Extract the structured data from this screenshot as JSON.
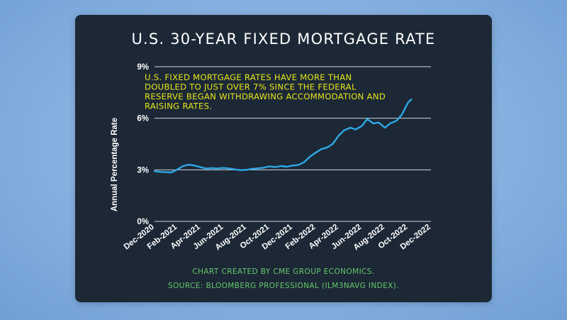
{
  "chart_data": {
    "type": "line",
    "title": "U.S. 30-YEAR FIXED MORTGAGE RATE",
    "ylabel": "Annual Percentage Rate",
    "xlabel": "",
    "ylim": [
      0,
      9
    ],
    "yticks": [
      "0%",
      "3%",
      "6%",
      "9%"
    ],
    "xtick_labels": [
      "Dec-2020",
      "Feb-2021",
      "Apr-2021",
      "Jun-2021",
      "Aug-2021",
      "Oct-2021",
      "Dec-2021",
      "Feb-2022",
      "Apr-2022",
      "Jun-2022",
      "Aug-2022",
      "Oct-2022",
      "Dec-2022"
    ],
    "xrange_months": [
      0,
      24
    ],
    "annotation": "U.S. FIXED MORTGAGE RATES HAVE MORE THAN DOUBLED TO JUST OVER 7% SINCE THE FEDERAL RESERVE BEGAN WITHDRAWING ACCOMMODATION AND RAISING RATES.",
    "grid": true,
    "line_color": "#2ea8e6",
    "series": [
      {
        "x": [
          "2020-12-01",
          "2020-12-15",
          "2021-01-01",
          "2021-01-15",
          "2021-02-01",
          "2021-02-15",
          "2021-03-01",
          "2021-03-15",
          "2021-04-01",
          "2021-04-15",
          "2021-05-01",
          "2021-05-15",
          "2021-06-01",
          "2021-06-15",
          "2021-07-01",
          "2021-07-15",
          "2021-08-01",
          "2021-08-15",
          "2021-09-01",
          "2021-09-15",
          "2021-10-01",
          "2021-10-15",
          "2021-11-01",
          "2021-11-15",
          "2021-12-01",
          "2021-12-15",
          "2022-01-01",
          "2022-01-15",
          "2022-02-01",
          "2022-02-15",
          "2022-03-01",
          "2022-03-15",
          "2022-04-01",
          "2022-04-15",
          "2022-05-01",
          "2022-05-15",
          "2022-06-01",
          "2022-06-15",
          "2022-07-01",
          "2022-07-15",
          "2022-08-01",
          "2022-08-15",
          "2022-09-01",
          "2022-09-15",
          "2022-10-01",
          "2022-10-10"
        ],
        "values": [
          2.92,
          2.88,
          2.86,
          2.85,
          3.02,
          3.22,
          3.3,
          3.25,
          3.15,
          3.07,
          3.1,
          3.08,
          3.11,
          3.08,
          3.02,
          2.98,
          3.0,
          3.05,
          3.09,
          3.12,
          3.2,
          3.16,
          3.22,
          3.18,
          3.25,
          3.28,
          3.45,
          3.75,
          4.0,
          4.2,
          4.3,
          4.5,
          5.0,
          5.3,
          5.45,
          5.35,
          5.55,
          5.95,
          5.7,
          5.75,
          5.45,
          5.7,
          5.85,
          6.2,
          6.9,
          7.1
        ]
      }
    ]
  },
  "footer": {
    "credit": "CHART CREATED BY CME GROUP ECONOMICS.",
    "source": "SOURCE:  BLOOMBERG PROFESSIONAL (ILM3NAVG INDEX)."
  },
  "colors": {
    "background": "#7fa9da",
    "card": "#1c2836",
    "line": "#2ea8e6",
    "annotation": "#e6e619",
    "footer": "#66c76b",
    "grid": "#cfd6de"
  }
}
